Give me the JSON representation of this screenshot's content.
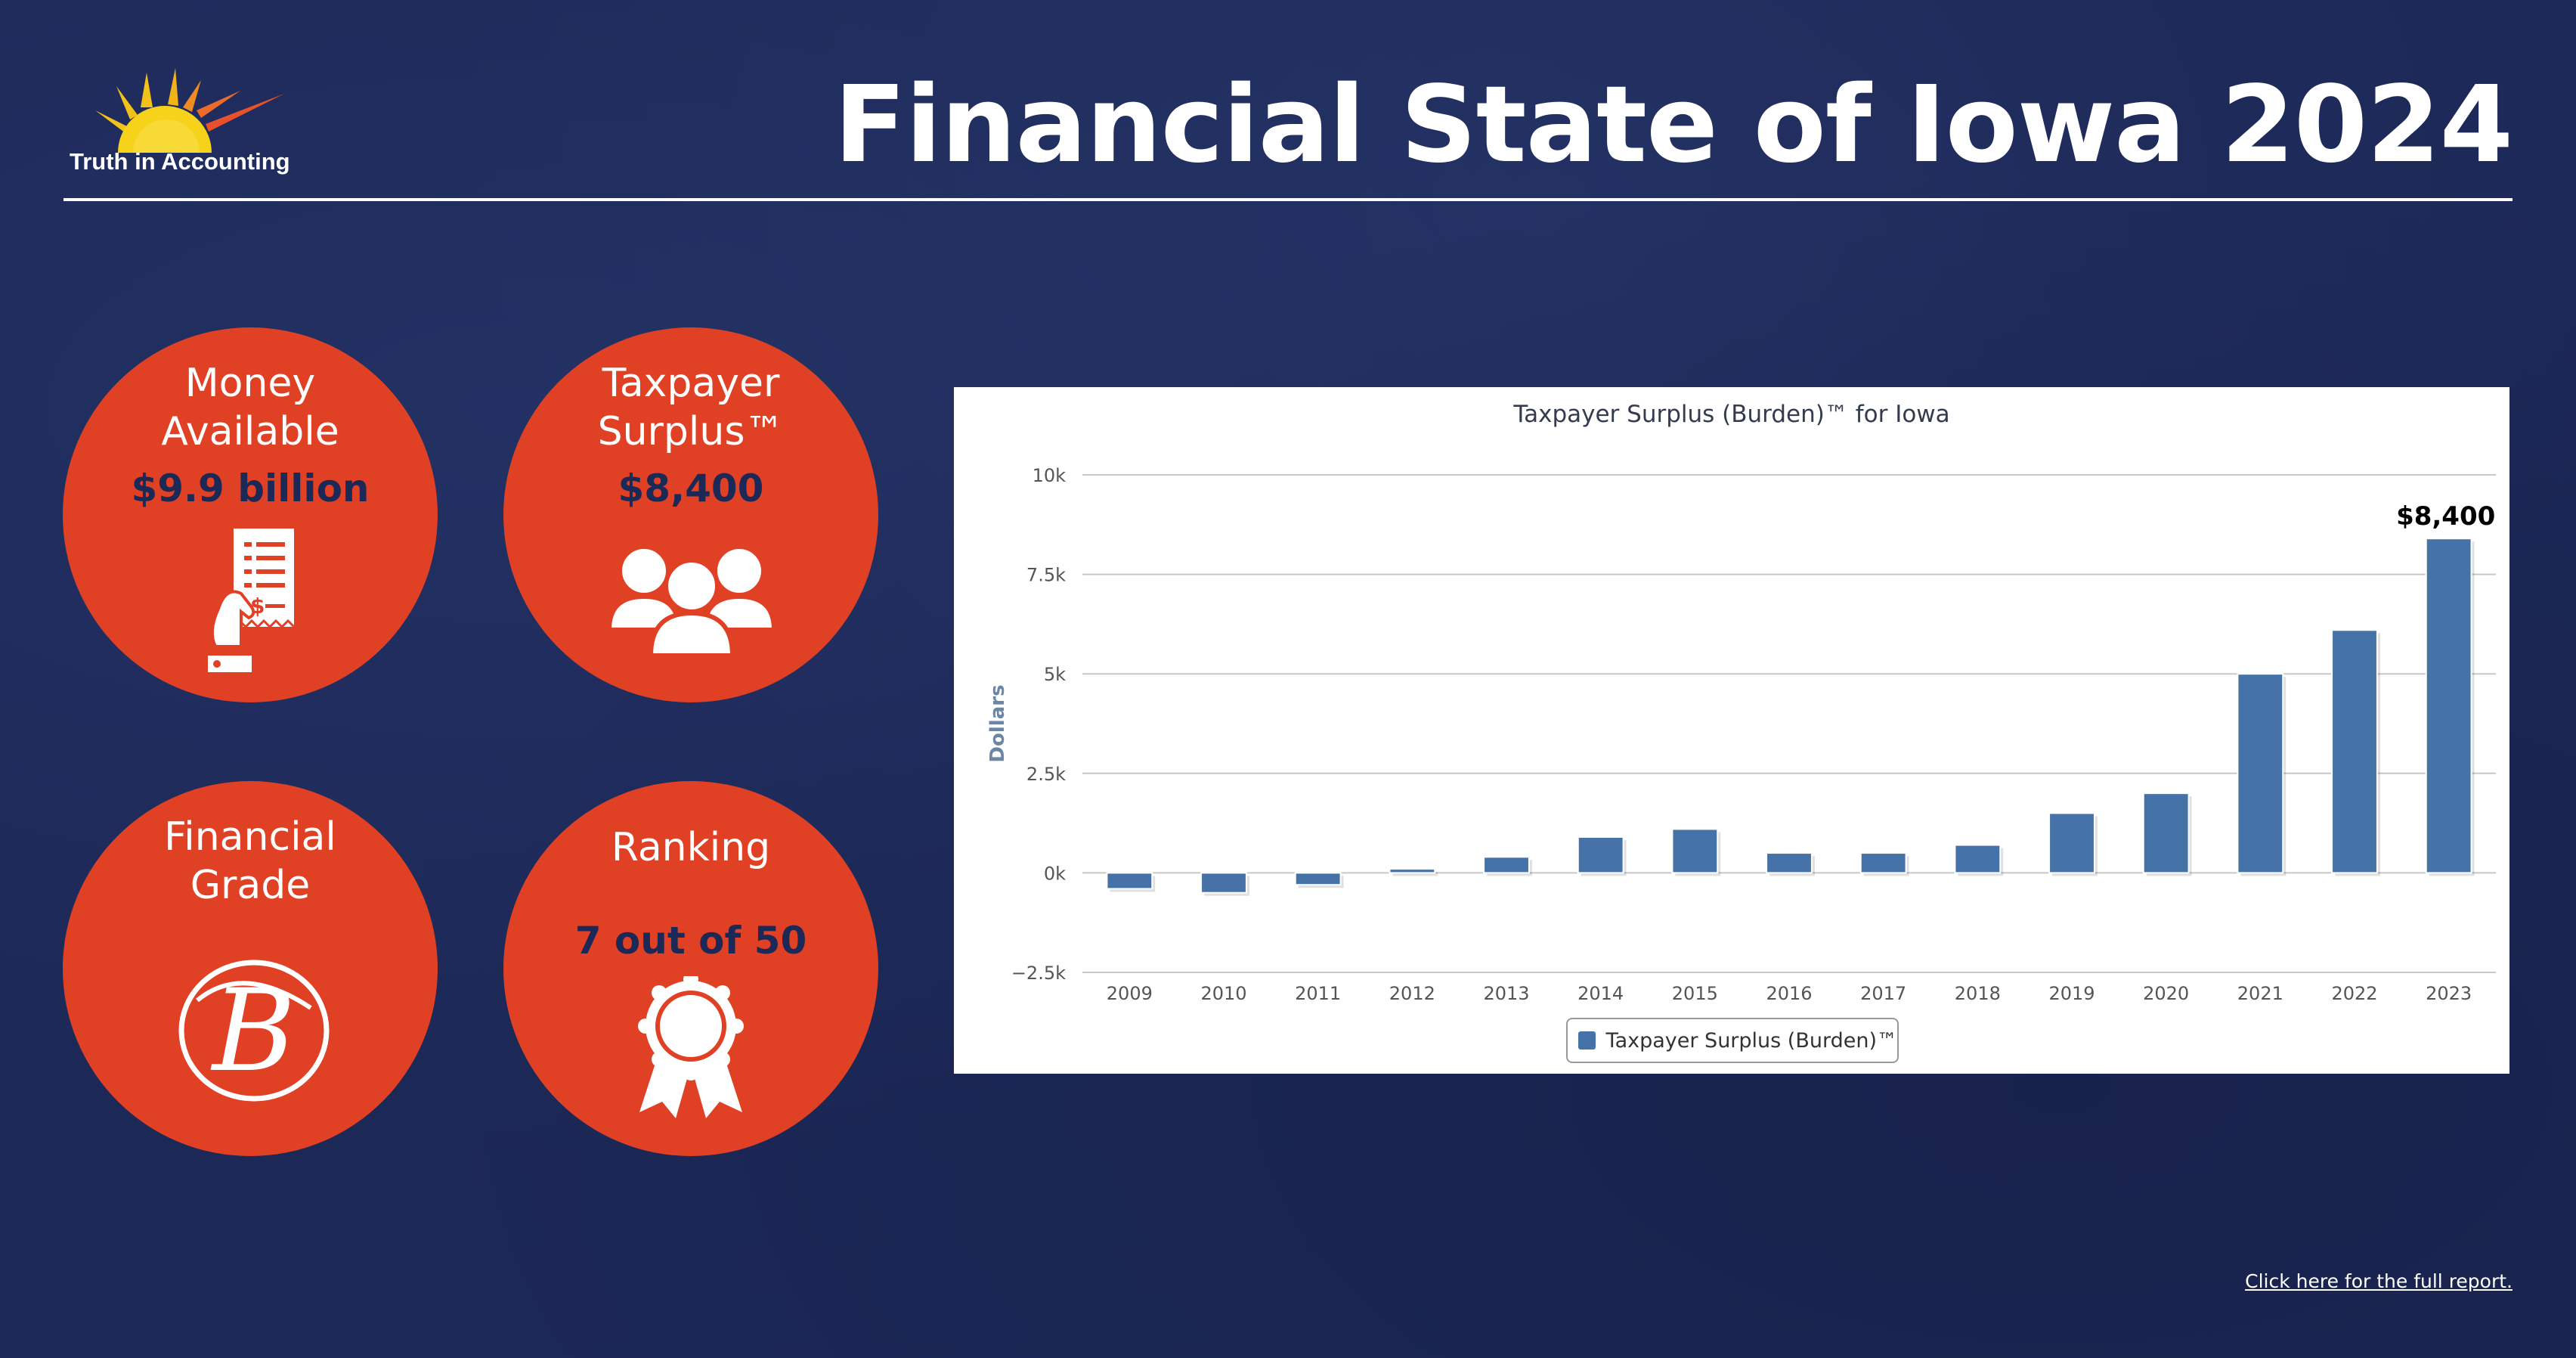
{
  "brand": {
    "logo_text": "Truth in Accounting",
    "logo_icon": "sun-icon"
  },
  "header": {
    "title": "Financial State of Iowa 2024"
  },
  "colors": {
    "background": "#1c2856",
    "circle": "#e04125",
    "value_text": "#1c2856",
    "bar": "#4572a7"
  },
  "stats": {
    "money": {
      "label_line1": "Money",
      "label_line2": "Available",
      "value": "$9.9 billion",
      "icon": "receipt-hand-icon"
    },
    "surplus": {
      "label_line1": "Taxpayer",
      "label_line2": "Surplus™",
      "value": "$8,400",
      "icon": "people-group-icon"
    },
    "grade": {
      "label_line1": "Financial",
      "label_line2": "Grade",
      "value": "B",
      "icon": "grade-b-icon"
    },
    "ranking": {
      "label": "Ranking",
      "value": "7 out of 50",
      "icon": "award-ribbon-icon"
    }
  },
  "chart_data": {
    "type": "bar",
    "title": "Taxpayer Surplus (Burden)™ for Iowa",
    "ylabel": "Dollars",
    "xlabel": "",
    "categories": [
      "2009",
      "2010",
      "2011",
      "2012",
      "2013",
      "2014",
      "2015",
      "2016",
      "2017",
      "2018",
      "2019",
      "2020",
      "2021",
      "2022",
      "2023"
    ],
    "series": [
      {
        "name": "Taxpayer Surplus (Burden)™",
        "values": [
          -400,
          -500,
          -300,
          100,
          400,
          900,
          1100,
          500,
          500,
          700,
          1500,
          2000,
          5000,
          6100,
          8400
        ]
      }
    ],
    "ylim": [
      -2500,
      10000
    ],
    "yticks": [
      -2500,
      0,
      2500,
      5000,
      7500,
      10000
    ],
    "ytick_labels": [
      "−2.5k",
      "0k",
      "2.5k",
      "5k",
      "7.5k",
      "10k"
    ],
    "data_labels": [
      {
        "index": 14,
        "text": "$8,400"
      }
    ],
    "grid": true,
    "legend_position": "bottom-center"
  },
  "footer": {
    "link_text": "Click here for the full report."
  }
}
